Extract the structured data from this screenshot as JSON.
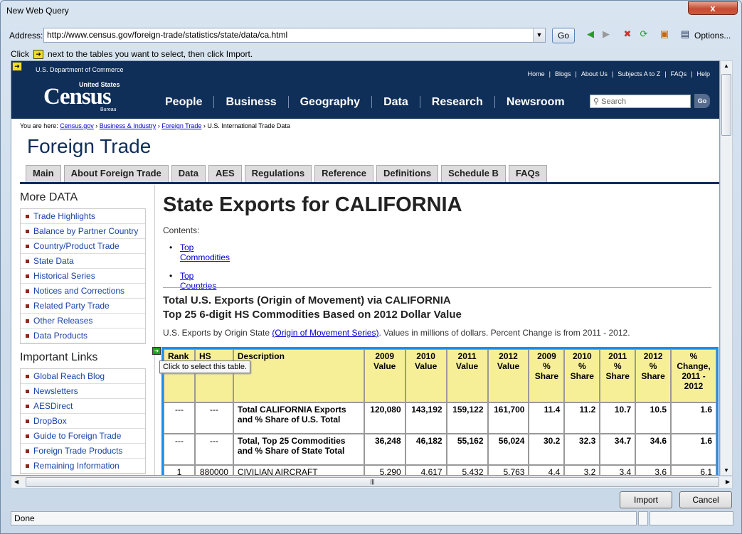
{
  "window": {
    "title": "New Web Query",
    "close": "x"
  },
  "address": {
    "label": "Address:",
    "url": "http://www.census.gov/foreign-trade/statistics/state/data/ca.html",
    "go": "Go",
    "options": "Options..."
  },
  "hint": {
    "before": "Click",
    "after": "next to the tables you want to select, then click Import."
  },
  "site": {
    "dept": "U.S. Department of Commerce",
    "toplinks": [
      "Home",
      "|",
      "Blogs",
      "|",
      "About Us",
      "|",
      "Subjects A to Z",
      "|",
      "FAQs",
      "|",
      "Help"
    ],
    "logo_top": "United States",
    "logo_main": "Census",
    "logo_sub": "Bureau",
    "nav": [
      "People",
      "Business",
      "Geography",
      "Data",
      "Research",
      "Newsroom"
    ],
    "search_placeholder": "Search",
    "search_go": "Go",
    "crumb_prefix": "You are here:",
    "crumbs": [
      "Census.gov",
      "Business & Industry",
      "Foreign Trade"
    ],
    "crumb_current": "U.S. International Trade Data",
    "section_title": "Foreign Trade",
    "tabs": [
      "Main",
      "About Foreign Trade",
      "Data",
      "AES",
      "Regulations",
      "Reference",
      "Definitions",
      "Schedule B",
      "FAQs"
    ]
  },
  "sidebar": {
    "more_title": "More DATA",
    "more": [
      "Trade Highlights",
      "Balance by Partner Country",
      "Country/Product Trade",
      "State Data",
      "Historical Series",
      "Notices and Corrections",
      "Related Party Trade",
      "Other Releases",
      "Data Products"
    ],
    "links_title": "Important Links",
    "links": [
      "Global Reach Blog",
      "Newsletters",
      "AESDirect",
      "DropBox",
      "Guide to Foreign Trade",
      "Foreign Trade Products",
      "Remaining Information"
    ]
  },
  "main": {
    "heading": "State Exports for CALIFORNIA",
    "contents_label": "Contents:",
    "contents": [
      "Top Commodities",
      "Top Countries"
    ],
    "sub1": "Total U.S. Exports (Origin of Movement) via CALIFORNIA",
    "sub2": "Top 25 6-digit HS Commodities Based on 2012 Dollar Value",
    "note_pre": "U.S. Exports by Origin State",
    "note_link": "(Origin of Movement Series)",
    "note_post": ". Values in millions of dollars. Percent Change is from 2011 - 2012.",
    "tooltip": "Click to select this table."
  },
  "table": {
    "headers": [
      "Rank",
      "HS",
      "Description",
      "2009 Value",
      "2010 Value",
      "2011 Value",
      "2012 Value",
      "2009 % Share",
      "2010 % Share",
      "2011 % Share",
      "2012 % Share",
      "% Change, 2011 - 2012"
    ],
    "rows": [
      [
        "---",
        "---",
        "Total CALIFORNIA Exports and % Share of U.S. Total",
        "120,080",
        "143,192",
        "159,122",
        "161,700",
        "11.4",
        "11.2",
        "10.7",
        "10.5",
        "1.6"
      ],
      [
        "---",
        "---",
        "Total, Top 25 Commodities and % Share of State Total",
        "36,248",
        "46,182",
        "55,162",
        "56,024",
        "30.2",
        "32.3",
        "34.7",
        "34.6",
        "1.6"
      ],
      [
        "1",
        "880000",
        "CIVILIAN AIRCRAFT",
        "5,290",
        "4,617",
        "5,432",
        "5,763",
        "4.4",
        "3.2",
        "3.4",
        "3.6",
        "6.1"
      ]
    ]
  },
  "buttons": {
    "import": "Import",
    "cancel": "Cancel"
  },
  "status": {
    "text": "Done"
  }
}
